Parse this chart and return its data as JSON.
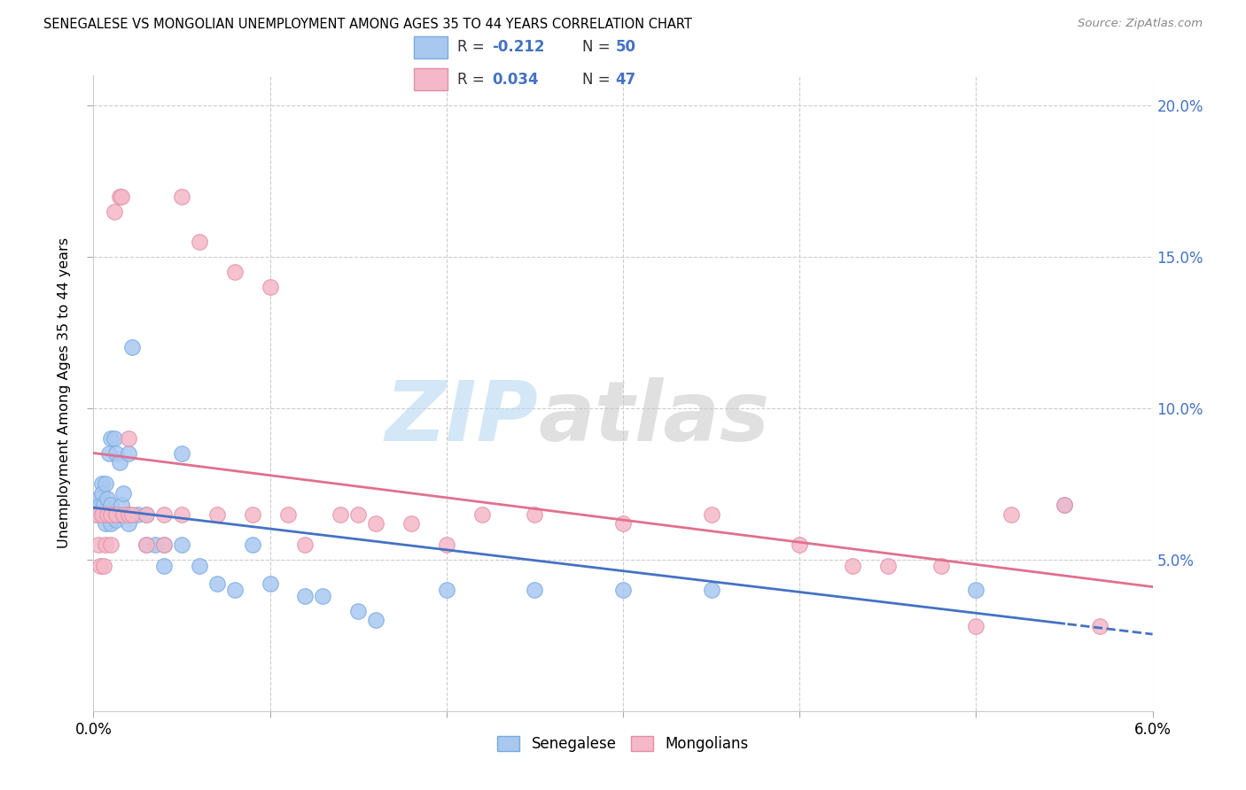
{
  "title": "SENEGALESE VS MONGOLIAN UNEMPLOYMENT AMONG AGES 35 TO 44 YEARS CORRELATION CHART",
  "source": "Source: ZipAtlas.com",
  "ylabel": "Unemployment Among Ages 35 to 44 years",
  "senegalese_color": "#a8c8f0",
  "senegalese_edge": "#7aaae0",
  "mongolian_color": "#f5b8c8",
  "mongolian_edge": "#e090a8",
  "blue_line_color": "#4472c4",
  "pink_line_color": "#e07090",
  "right_tick_color": "#4472c4",
  "blue_r": "-0.212",
  "blue_n": "50",
  "pink_r": "0.034",
  "pink_n": "47",
  "blue_x": [
    0.0002,
    0.0003,
    0.0004,
    0.0005,
    0.0005,
    0.0006,
    0.0006,
    0.0007,
    0.0007,
    0.0008,
    0.0008,
    0.0009,
    0.001,
    0.001,
    0.001,
    0.0012,
    0.0012,
    0.0013,
    0.0013,
    0.0015,
    0.0015,
    0.0016,
    0.0017,
    0.002,
    0.002,
    0.002,
    0.0022,
    0.0025,
    0.003,
    0.003,
    0.0035,
    0.004,
    0.004,
    0.005,
    0.005,
    0.006,
    0.007,
    0.008,
    0.009,
    0.01,
    0.012,
    0.013,
    0.015,
    0.016,
    0.02,
    0.025,
    0.03,
    0.035,
    0.05,
    0.055
  ],
  "blue_y": [
    0.065,
    0.07,
    0.068,
    0.075,
    0.072,
    0.065,
    0.068,
    0.075,
    0.062,
    0.065,
    0.07,
    0.085,
    0.062,
    0.068,
    0.09,
    0.065,
    0.09,
    0.063,
    0.085,
    0.065,
    0.082,
    0.068,
    0.072,
    0.085,
    0.065,
    0.062,
    0.12,
    0.065,
    0.065,
    0.055,
    0.055,
    0.055,
    0.048,
    0.085,
    0.055,
    0.048,
    0.042,
    0.04,
    0.055,
    0.042,
    0.038,
    0.038,
    0.033,
    0.03,
    0.04,
    0.04,
    0.04,
    0.04,
    0.04,
    0.068
  ],
  "pink_x": [
    0.0002,
    0.0003,
    0.0004,
    0.0005,
    0.0006,
    0.0007,
    0.0008,
    0.001,
    0.001,
    0.0012,
    0.0013,
    0.0015,
    0.0016,
    0.0017,
    0.002,
    0.002,
    0.0022,
    0.003,
    0.003,
    0.004,
    0.004,
    0.005,
    0.005,
    0.006,
    0.007,
    0.008,
    0.009,
    0.01,
    0.011,
    0.012,
    0.014,
    0.015,
    0.016,
    0.018,
    0.02,
    0.022,
    0.025,
    0.03,
    0.035,
    0.04,
    0.043,
    0.045,
    0.048,
    0.05,
    0.052,
    0.055,
    0.057
  ],
  "pink_y": [
    0.065,
    0.055,
    0.048,
    0.065,
    0.048,
    0.055,
    0.065,
    0.065,
    0.055,
    0.165,
    0.065,
    0.17,
    0.17,
    0.065,
    0.065,
    0.09,
    0.065,
    0.065,
    0.055,
    0.065,
    0.055,
    0.17,
    0.065,
    0.155,
    0.065,
    0.145,
    0.065,
    0.14,
    0.065,
    0.055,
    0.065,
    0.065,
    0.062,
    0.062,
    0.055,
    0.065,
    0.065,
    0.062,
    0.065,
    0.055,
    0.048,
    0.048,
    0.048,
    0.028,
    0.065,
    0.068,
    0.028
  ],
  "xlim": [
    0.0,
    0.06
  ],
  "ylim": [
    0.0,
    0.21
  ],
  "yticks": [
    0.05,
    0.1,
    0.15,
    0.2
  ],
  "ytick_labels": [
    "5.0%",
    "10.0%",
    "15.0%",
    "20.0%"
  ],
  "xtick_positions": [
    0.0,
    0.01,
    0.02,
    0.03,
    0.04,
    0.05,
    0.06
  ],
  "xtick_labels_show": [
    "0.0%",
    "",
    "",
    "",
    "",
    "",
    "6.0%"
  ]
}
